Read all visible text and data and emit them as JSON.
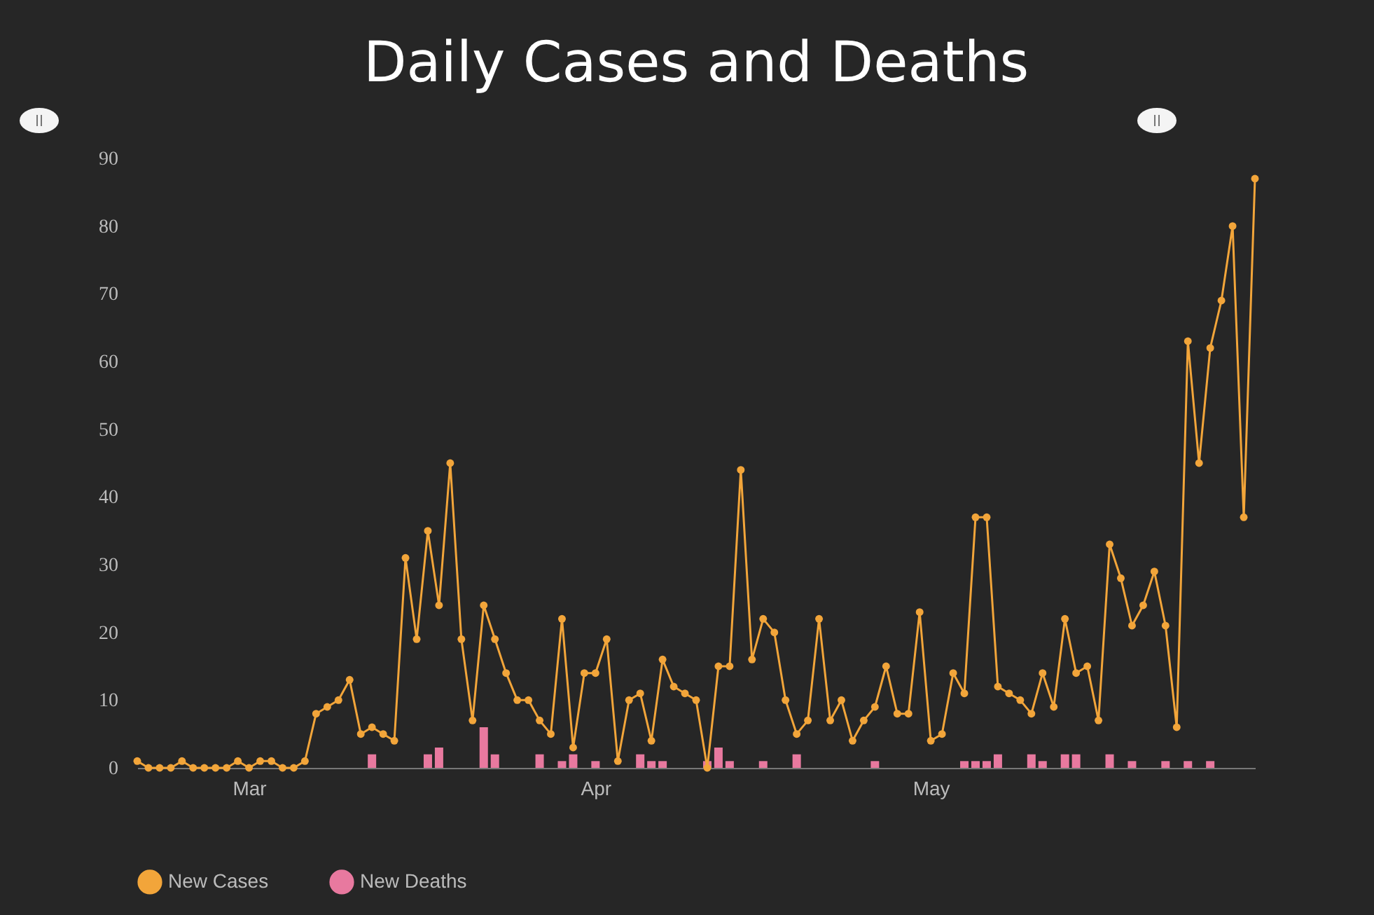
{
  "chart_data": {
    "type": "line",
    "title": "Daily Cases and Deaths",
    "x": [
      "--02-20",
      "--02-21",
      "--02-22",
      "--02-23",
      "--02-24",
      "--02-25",
      "--02-26",
      "--02-27",
      "--02-28",
      "--02-29",
      "--03-01",
      "--03-02",
      "--03-03",
      "--03-04",
      "--03-05",
      "--03-06",
      "--03-07",
      "--03-08",
      "--03-09",
      "--03-10",
      "--03-11",
      "--03-12",
      "--03-13",
      "--03-14",
      "--03-15",
      "--03-16",
      "--03-17",
      "--03-18",
      "--03-19",
      "--03-20",
      "--03-21",
      "--03-22",
      "--03-23",
      "--03-24",
      "--03-25",
      "--03-26",
      "--03-27",
      "--03-28",
      "--03-29",
      "--03-30",
      "--03-31",
      "--04-01",
      "--04-02",
      "--04-03",
      "--04-04",
      "--04-05",
      "--04-06",
      "--04-07",
      "--04-08",
      "--04-09",
      "--04-10",
      "--04-11",
      "--04-12",
      "--04-13",
      "--04-14",
      "--04-15",
      "--04-16",
      "--04-17",
      "--04-18",
      "--04-19",
      "--04-20",
      "--04-21",
      "--04-22",
      "--04-23",
      "--04-24",
      "--04-25",
      "--04-26",
      "--04-27",
      "--04-28",
      "--04-29",
      "--04-30",
      "--05-01",
      "--05-02",
      "--05-03",
      "--05-04",
      "--05-05",
      "--05-06",
      "--05-07",
      "--05-08",
      "--05-09",
      "--05-10",
      "--05-11",
      "--05-12",
      "--05-13",
      "--05-14",
      "--05-15",
      "--05-16",
      "--05-17",
      "--05-18",
      "--05-19",
      "--05-20",
      "--05-21",
      "--05-22",
      "--05-23",
      "--05-24",
      "--05-25",
      "--05-26",
      "--05-27",
      "--05-28",
      "--05-29",
      "--05-30"
    ],
    "series": [
      {
        "name": "New Cases",
        "color": "#f2a53a",
        "values": [
          1,
          0,
          0,
          0,
          1,
          0,
          0,
          0,
          0,
          1,
          0,
          1,
          1,
          0,
          0,
          1,
          8,
          9,
          10,
          13,
          5,
          6,
          5,
          4,
          31,
          19,
          35,
          24,
          45,
          19,
          7,
          24,
          19,
          14,
          10,
          10,
          7,
          5,
          22,
          3,
          14,
          14,
          19,
          1,
          10,
          11,
          4,
          16,
          12,
          11,
          10,
          0,
          15,
          15,
          44,
          16,
          22,
          20,
          10,
          5,
          7,
          22,
          7,
          10,
          4,
          7,
          9,
          15,
          8,
          8,
          23,
          4,
          5,
          14,
          11,
          37,
          37,
          12,
          11,
          10,
          8,
          14,
          9,
          22,
          14,
          15,
          7,
          33,
          28,
          21,
          24,
          29,
          21,
          6,
          63,
          45,
          62,
          69,
          80,
          37,
          87
        ]
      },
      {
        "name": "New Deaths",
        "type": "bar",
        "color": "#e8799f",
        "values": [
          0,
          0,
          0,
          0,
          0,
          0,
          0,
          0,
          0,
          0,
          0,
          0,
          0,
          0,
          0,
          0,
          0,
          0,
          0,
          0,
          0,
          2,
          0,
          0,
          0,
          0,
          2,
          3,
          0,
          0,
          0,
          6,
          2,
          0,
          0,
          0,
          2,
          0,
          1,
          2,
          0,
          1,
          0,
          0,
          0,
          2,
          1,
          1,
          0,
          0,
          0,
          1,
          3,
          1,
          0,
          0,
          1,
          0,
          0,
          2,
          0,
          0,
          0,
          0,
          0,
          0,
          1,
          0,
          0,
          0,
          0,
          0,
          0,
          0,
          1,
          1,
          1,
          2,
          0,
          0,
          2,
          1,
          0,
          2,
          2,
          0,
          0,
          2,
          0,
          1,
          0,
          0,
          1,
          0,
          1,
          0,
          1,
          0,
          0,
          0,
          0
        ]
      }
    ],
    "xlim": [
      "--02-20",
      "--05-30"
    ],
    "xticks": [
      {
        "value": "--03-01",
        "label": "Mar"
      },
      {
        "value": "--04-01",
        "label": "Apr"
      },
      {
        "value": "--05-01",
        "label": "May"
      }
    ],
    "ylim": [
      0,
      90
    ],
    "yticks": [
      0,
      10,
      20,
      30,
      40,
      50,
      60,
      70,
      80,
      90
    ],
    "grid": false,
    "legend": "bottom",
    "marker": "circle",
    "line_style": "solid"
  }
}
